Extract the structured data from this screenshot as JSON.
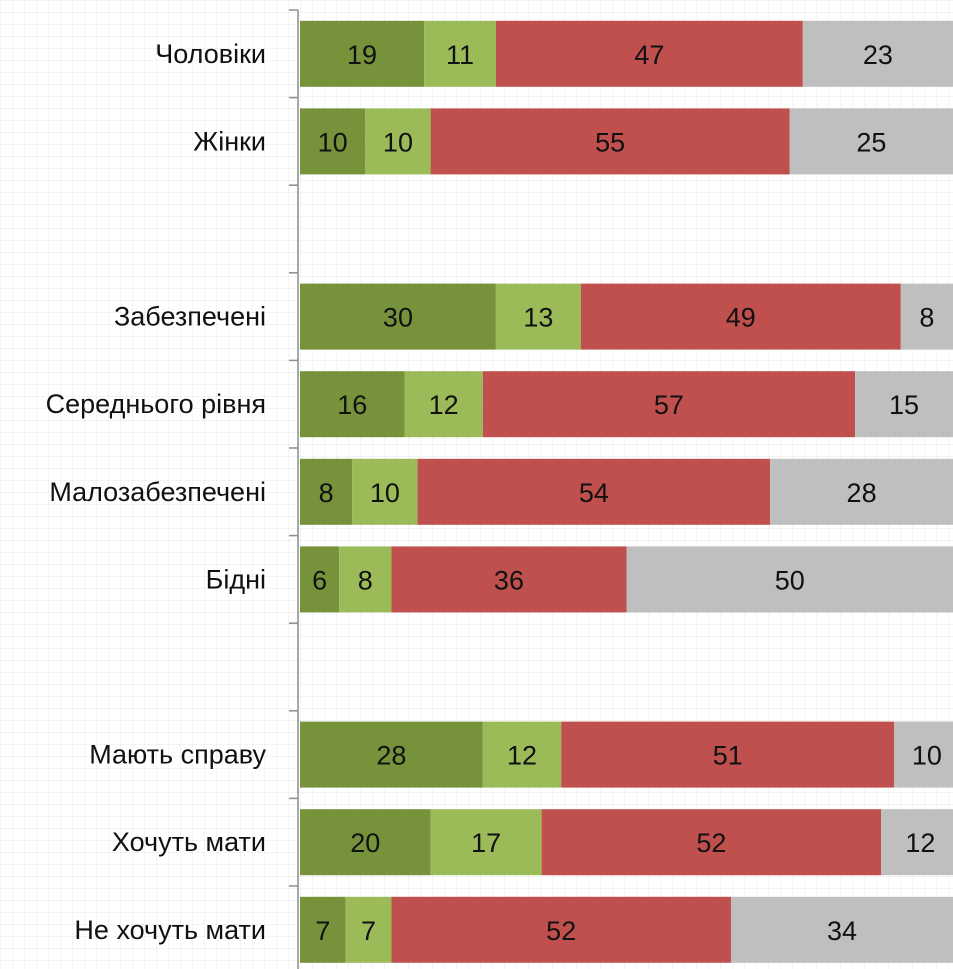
{
  "chart_data": {
    "type": "bar",
    "orientation": "horizontal",
    "stacked": true,
    "title": "",
    "xlabel": "",
    "ylabel": "",
    "xlim": [
      0,
      100
    ],
    "grid": true,
    "legend": "none",
    "categories": [
      "Чоловіки",
      "Жінки",
      "",
      "Забезпечені",
      "Середнього рівня",
      "Малозабезпечені",
      "Бідні",
      "",
      "Мають справу",
      "Хочуть мати",
      "Не хочуть мати"
    ],
    "series": [
      {
        "color": "#76933c",
        "values": [
          19,
          10,
          null,
          30,
          16,
          8,
          6,
          null,
          28,
          20,
          7
        ]
      },
      {
        "color": "#9bbb59",
        "values": [
          11,
          10,
          null,
          13,
          12,
          10,
          8,
          null,
          12,
          17,
          7
        ]
      },
      {
        "color": "#c0504d",
        "values": [
          47,
          55,
          null,
          49,
          57,
          54,
          36,
          null,
          51,
          52,
          52
        ]
      },
      {
        "color": "#bfbfbf",
        "values": [
          23,
          25,
          null,
          8,
          15,
          28,
          50,
          null,
          10,
          12,
          34
        ]
      }
    ]
  }
}
